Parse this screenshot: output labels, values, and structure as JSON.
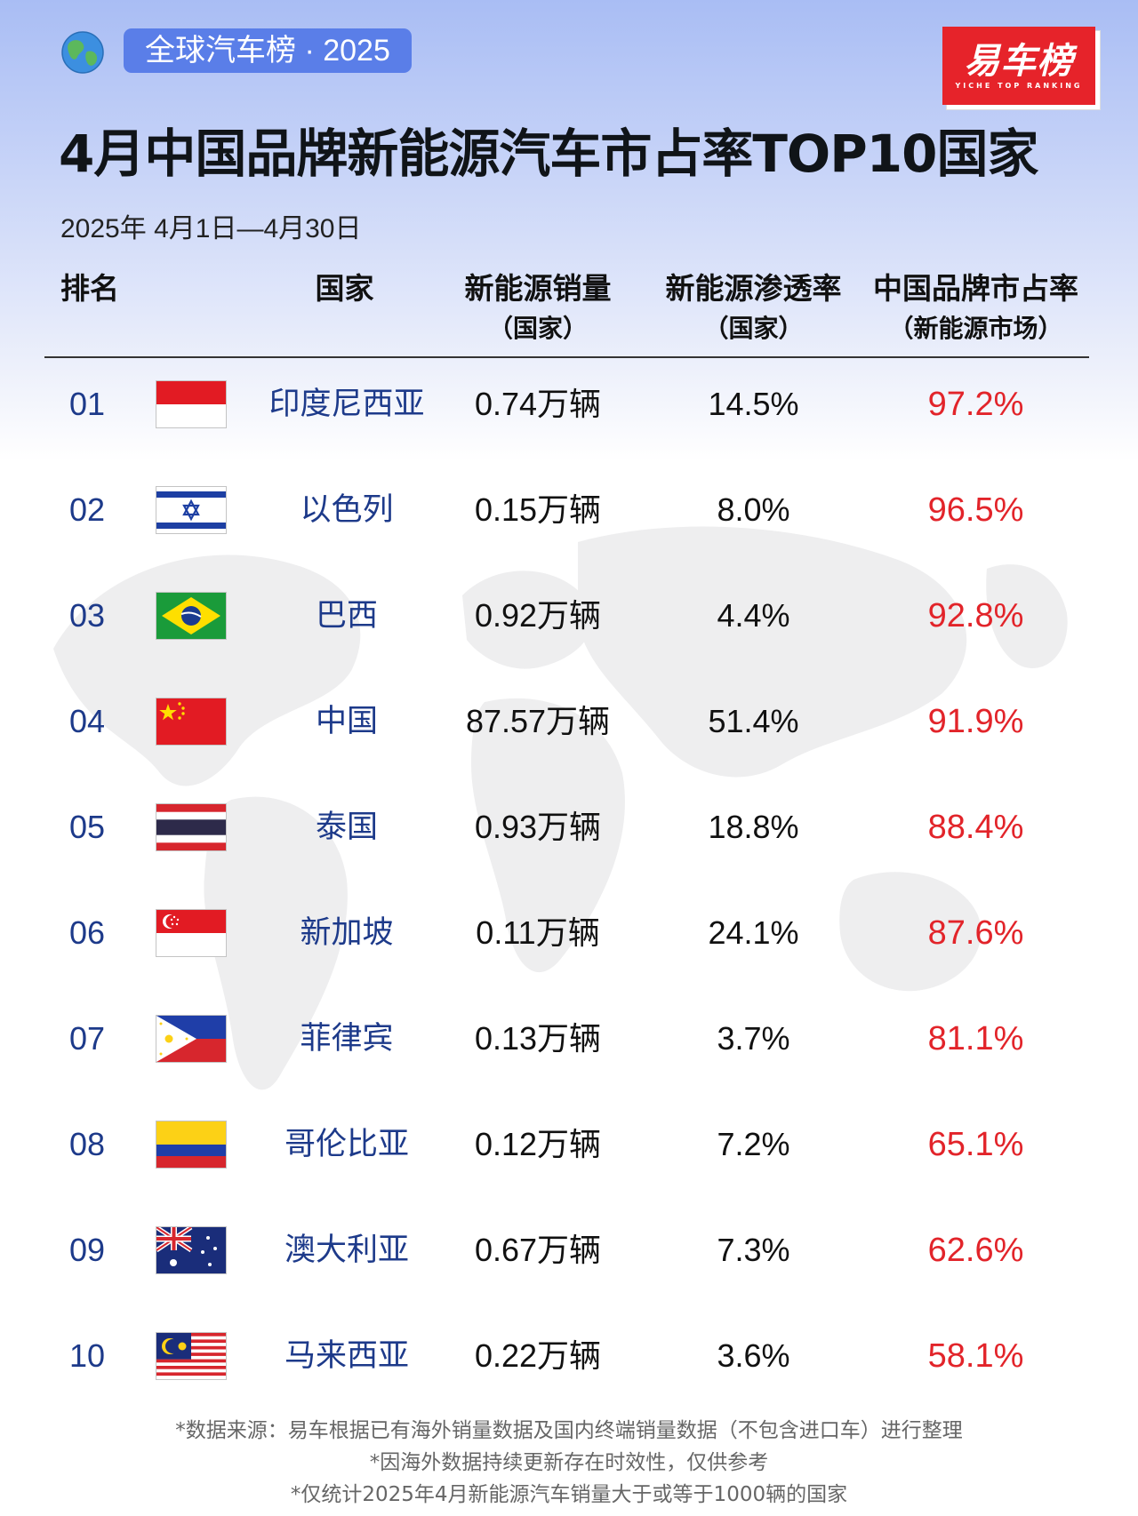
{
  "header": {
    "tag": "全球汽车榜 · 2025",
    "logo_text": "易车榜",
    "logo_sub": "YICHE TOP RANKING",
    "title": "4月中国品牌新能源汽车市占率TOP10国家",
    "date_range": "2025年 4月1日—4月30日"
  },
  "columns": {
    "rank": "排名",
    "country": "国家",
    "sales": "新能源销量",
    "sales_sub": "（国家）",
    "penetration": "新能源渗透率",
    "penetration_sub": "（国家）",
    "share": "中国品牌市占率",
    "share_sub": "（新能源市场）"
  },
  "icons": {
    "globe": "globe-icon",
    "flags": [
      "indonesia-flag",
      "israel-flag",
      "brazil-flag",
      "china-flag",
      "thailand-flag",
      "singapore-flag",
      "philippines-flag",
      "colombia-flag",
      "australia-flag",
      "malaysia-flag"
    ]
  },
  "colors": {
    "accent_blue": "#5a7ee8",
    "brand_red": "#e6232a",
    "share_red": "#e2242a",
    "name_blue": "#1d3a8a"
  },
  "rows": [
    {
      "rank": "01",
      "country": "印度尼西亚",
      "sales": "0.74万辆",
      "penetration": "14.5%",
      "share": "97.2%"
    },
    {
      "rank": "02",
      "country": "以色列",
      "sales": "0.15万辆",
      "penetration": "8.0%",
      "share": "96.5%"
    },
    {
      "rank": "03",
      "country": "巴西",
      "sales": "0.92万辆",
      "penetration": "4.4%",
      "share": "92.8%"
    },
    {
      "rank": "04",
      "country": "中国",
      "sales": "87.57万辆",
      "penetration": "51.4%",
      "share": "91.9%"
    },
    {
      "rank": "05",
      "country": "泰国",
      "sales": "0.93万辆",
      "penetration": "18.8%",
      "share": "88.4%"
    },
    {
      "rank": "06",
      "country": "新加坡",
      "sales": "0.11万辆",
      "penetration": "24.1%",
      "share": "87.6%"
    },
    {
      "rank": "07",
      "country": "菲律宾",
      "sales": "0.13万辆",
      "penetration": "3.7%",
      "share": "81.1%"
    },
    {
      "rank": "08",
      "country": "哥伦比亚",
      "sales": "0.12万辆",
      "penetration": "7.2%",
      "share": "65.1%"
    },
    {
      "rank": "09",
      "country": "澳大利亚",
      "sales": "0.67万辆",
      "penetration": "7.3%",
      "share": "62.6%"
    },
    {
      "rank": "10",
      "country": "马来西亚",
      "sales": "0.22万辆",
      "penetration": "3.6%",
      "share": "58.1%"
    }
  ],
  "footnotes": [
    "*数据来源：易车根据已有海外销量数据及国内终端销量数据（不包含进口车）进行整理",
    "*因海外数据持续更新存在时效性，仅供参考",
    "*仅统计2025年4月新能源汽车销量大于或等于1000辆的国家"
  ],
  "chart_data": {
    "type": "table",
    "title": "4月中国品牌新能源汽车市占率TOP10国家",
    "columns": [
      "排名",
      "国家",
      "新能源销量（国家）",
      "新能源渗透率（国家）",
      "中国品牌市占率（新能源市场）"
    ],
    "categories": [
      "印度尼西亚",
      "以色列",
      "巴西",
      "中国",
      "泰国",
      "新加坡",
      "菲律宾",
      "哥伦比亚",
      "澳大利亚",
      "马来西亚"
    ],
    "series": [
      {
        "name": "新能源销量",
        "unit": "万辆",
        "values": [
          0.74,
          0.15,
          0.92,
          87.57,
          0.93,
          0.11,
          0.13,
          0.12,
          0.67,
          0.22
        ]
      },
      {
        "name": "新能源渗透率",
        "unit": "%",
        "values": [
          14.5,
          8.0,
          4.4,
          51.4,
          18.8,
          24.1,
          3.7,
          7.2,
          7.3,
          3.6
        ]
      },
      {
        "name": "中国品牌市占率",
        "unit": "%",
        "values": [
          97.2,
          96.5,
          92.8,
          91.9,
          88.4,
          87.6,
          81.1,
          65.1,
          62.6,
          58.1
        ]
      }
    ]
  }
}
